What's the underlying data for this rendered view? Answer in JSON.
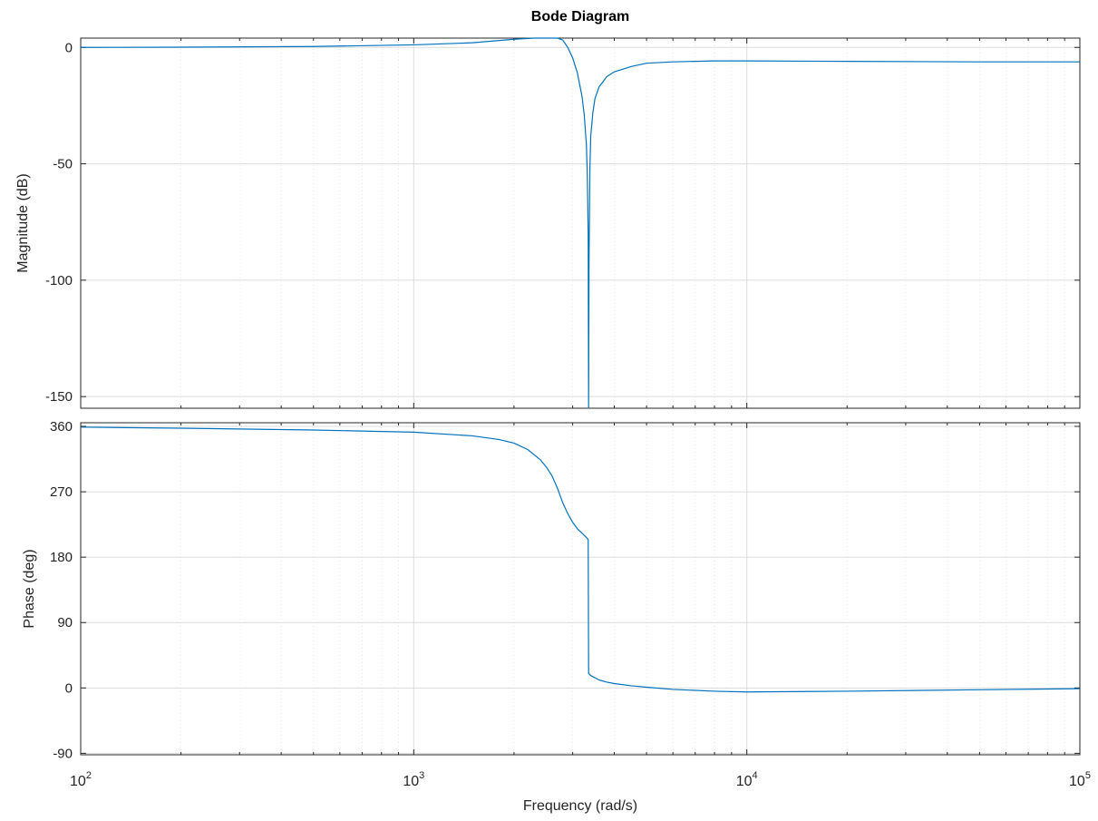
{
  "chart_data": [
    {
      "type": "line",
      "title": "Bode Diagram",
      "xlabel": "",
      "ylabel": "Magnitude (dB)",
      "xscale": "log",
      "xlim": [
        100,
        100000
      ],
      "ylim": [
        -155,
        4
      ],
      "yticks": [
        "0",
        "-50",
        "-100",
        "-150"
      ],
      "grid": true,
      "series_color": "#0072BD",
      "x": [
        100,
        200,
        500,
        1000,
        1500,
        2000,
        2300,
        2500,
        2600,
        2700,
        2800,
        2900,
        3000,
        3100,
        3200,
        3250,
        3300,
        3320,
        3340,
        3350,
        3360,
        3380,
        3400,
        3450,
        3500,
        3600,
        3800,
        4000,
        4500,
        5000,
        6000,
        8000,
        10000,
        20000,
        50000,
        100000
      ],
      "y": [
        0,
        0.1,
        0.4,
        1.1,
        2.0,
        3.5,
        4.8,
        5.6,
        5.7,
        5.1,
        3.2,
        0,
        -4.5,
        -11,
        -21,
        -29,
        -42,
        -55,
        -80,
        -155,
        -90,
        -52,
        -38,
        -28,
        -22,
        -17,
        -12.5,
        -10.5,
        -8.2,
        -6.8,
        -6.2,
        -5.8,
        -5.8,
        -6.0,
        -6.2,
        -6.2
      ]
    },
    {
      "type": "line",
      "xlabel": "Frequency  (rad/s)",
      "ylabel": "Phase (deg)",
      "xscale": "log",
      "xlim": [
        100,
        100000
      ],
      "ylim": [
        -92,
        365
      ],
      "yticks": [
        "360",
        "270",
        "180",
        "90",
        "0",
        "-90"
      ],
      "xticks": [
        {
          "base": "10",
          "exp": "2"
        },
        {
          "base": "10",
          "exp": "3"
        },
        {
          "base": "10",
          "exp": "4"
        },
        {
          "base": "10",
          "exp": "5"
        }
      ],
      "grid": true,
      "series_color": "#0072BD",
      "x": [
        100,
        200,
        500,
        1000,
        1500,
        1800,
        2000,
        2200,
        2400,
        2500,
        2600,
        2700,
        2800,
        2900,
        3000,
        3100,
        3200,
        3300,
        3330,
        3340,
        3350,
        3400,
        3500,
        3600,
        3800,
        4000,
        4500,
        5000,
        6000,
        8000,
        10000,
        20000,
        50000,
        100000
      ],
      "y": [
        359,
        357.5,
        355,
        352,
        347,
        342,
        337,
        328,
        314,
        304,
        292,
        275,
        255,
        240,
        228,
        219,
        213,
        207,
        205,
        204,
        20,
        17,
        14,
        11,
        8,
        6,
        3,
        1,
        -2,
        -4.5,
        -5.5,
        -4.5,
        -2.5,
        -1
      ]
    }
  ]
}
